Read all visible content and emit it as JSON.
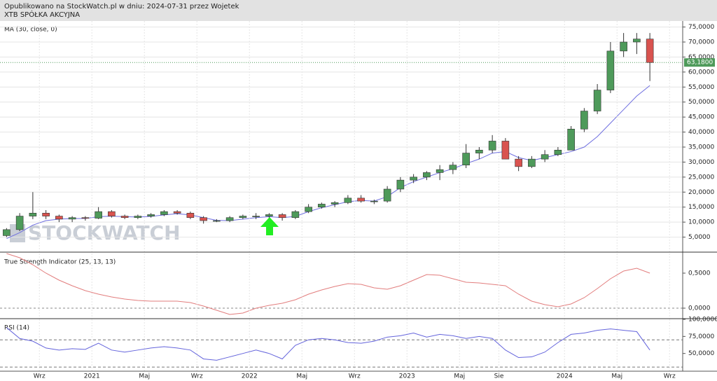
{
  "header": {
    "line1": "Opublikowano na StockWatch.pl w dniu: 2024-07-31 przez Wojetek",
    "line2": "XTB SPÓŁKA AKCYJNA"
  },
  "watermark": "STOCKWATCH",
  "chart_data": [
    {
      "type": "candlestick",
      "title": "MA (30, close, 0)",
      "x": [
        "2020-06",
        "2020-07",
        "2020-08",
        "2020-09",
        "2020-10",
        "2020-11",
        "2020-12",
        "2021-01",
        "2021-02",
        "2021-03",
        "2021-04",
        "2021-05",
        "2021-06",
        "2021-07",
        "2021-08",
        "2021-09",
        "2021-10",
        "2021-11",
        "2021-12",
        "2022-01",
        "2022-02",
        "2022-03",
        "2022-04",
        "2022-05",
        "2022-06",
        "2022-07",
        "2022-08",
        "2022-09",
        "2022-10",
        "2022-11",
        "2022-12",
        "2023-01",
        "2023-02",
        "2023-03",
        "2023-04",
        "2023-05",
        "2023-06",
        "2023-07",
        "2023-08",
        "2023-09",
        "2023-10",
        "2023-11",
        "2023-12",
        "2024-01",
        "2024-02",
        "2024-03",
        "2024-04",
        "2024-05",
        "2024-06",
        "2024-07"
      ],
      "open": [
        5.5,
        7.5,
        12,
        13,
        12,
        11,
        11.5,
        11.3,
        13.5,
        12,
        11.5,
        12,
        12.5,
        13.5,
        13,
        11.5,
        10.5,
        10.5,
        11.5,
        12,
        12,
        12.5,
        11.5,
        13.5,
        15,
        16,
        16.5,
        18,
        17,
        17,
        21,
        24,
        25,
        26.5,
        27.5,
        29,
        33,
        34,
        37,
        31,
        28.5,
        31,
        32.5,
        34,
        41,
        47,
        54,
        67,
        70,
        71
      ],
      "high": [
        8,
        13,
        20,
        14,
        12.5,
        12,
        12,
        15,
        14,
        12.5,
        12.5,
        13,
        14,
        14,
        13.5,
        12,
        11,
        12,
        12.5,
        13,
        13,
        13,
        14,
        16,
        16.5,
        17,
        19,
        19,
        17.5,
        22,
        25,
        26,
        27,
        29,
        30,
        36,
        35,
        39,
        38,
        32,
        32,
        34,
        35,
        42,
        48,
        56,
        70,
        73,
        73,
        73
      ],
      "low": [
        5,
        7,
        11,
        11,
        10,
        10,
        10.5,
        11,
        11.5,
        11,
        11,
        11.5,
        12,
        12.5,
        11,
        9.5,
        10,
        10,
        11,
        11,
        11,
        10.5,
        11,
        13,
        14.5,
        15,
        16,
        16.5,
        16,
        16.5,
        20,
        23,
        24,
        24,
        26,
        28,
        31,
        33,
        31,
        27,
        28,
        30,
        32,
        34,
        40,
        46,
        53,
        65,
        66,
        57
      ],
      "close": [
        7.5,
        12,
        13,
        12,
        11,
        11.5,
        11.3,
        13.5,
        12,
        11.5,
        12,
        12.5,
        13.5,
        13,
        11.5,
        10.5,
        10.5,
        11.5,
        12,
        12,
        12.5,
        11.5,
        13.5,
        15,
        16,
        16.5,
        18,
        17,
        17,
        21,
        24,
        25,
        26.5,
        27.5,
        29,
        33,
        34,
        37,
        31,
        28.5,
        31,
        32.5,
        34,
        41,
        47,
        54,
        67,
        70,
        71,
        63.18
      ],
      "up_color": "#4e9a5a",
      "down_color": "#d9534f",
      "series": [
        {
          "color": "#6f6fe0",
          "values": [
            4.5,
            6.5,
            9,
            10.5,
            11,
            11.2,
            11.2,
            11.8,
            12,
            11.8,
            11.7,
            11.9,
            12.4,
            12.8,
            12.4,
            11.5,
            10.6,
            10.5,
            11,
            11.5,
            11.8,
            11.5,
            11.9,
            13.5,
            14.8,
            15.8,
            16.8,
            17.2,
            17,
            18.5,
            21.5,
            23.5,
            25,
            26.5,
            27.8,
            29.5,
            31,
            33,
            33.5,
            31.5,
            30.5,
            31.5,
            32.5,
            33.5,
            35,
            38.5,
            43,
            47.5,
            52,
            55.5
          ]
        }
      ],
      "last_price": {
        "value": 63.18,
        "label": "63,1800"
      },
      "last_color": "#4e9a5a",
      "xlim": [
        "2020-06",
        "2024-10"
      ],
      "ylim": [
        0,
        77
      ],
      "yticks": [
        {
          "value": 5,
          "label": "5,0000"
        },
        {
          "value": 10,
          "label": "10,0000"
        },
        {
          "value": 15,
          "label": "15,0000"
        },
        {
          "value": 20,
          "label": "20,0000"
        },
        {
          "value": 25,
          "label": "25,0000"
        },
        {
          "value": 30,
          "label": "30,0000"
        },
        {
          "value": 35,
          "label": "35,0000"
        },
        {
          "value": 40,
          "label": "40,0000"
        },
        {
          "value": 45,
          "label": "45,0000"
        },
        {
          "value": 50,
          "label": "50,0000"
        },
        {
          "value": 55,
          "label": "55,0000"
        },
        {
          "value": 60,
          "label": "60,0000"
        },
        {
          "value": 65,
          "label": "65,0000"
        },
        {
          "value": 70,
          "label": "70,0000"
        },
        {
          "value": 75,
          "label": "75,0000"
        }
      ],
      "grid": true
    },
    {
      "type": "line",
      "title": "True Strength Indicator (25, 13, 13)",
      "x": [
        "2020-06",
        "2020-07",
        "2020-08",
        "2020-09",
        "2020-10",
        "2020-11",
        "2020-12",
        "2021-01",
        "2021-02",
        "2021-03",
        "2021-04",
        "2021-05",
        "2021-06",
        "2021-07",
        "2021-08",
        "2021-09",
        "2021-10",
        "2021-11",
        "2021-12",
        "2022-01",
        "2022-02",
        "2022-03",
        "2022-04",
        "2022-05",
        "2022-06",
        "2022-07",
        "2022-08",
        "2022-09",
        "2022-10",
        "2022-11",
        "2022-12",
        "2023-01",
        "2023-02",
        "2023-03",
        "2023-04",
        "2023-05",
        "2023-06",
        "2023-07",
        "2023-08",
        "2023-09",
        "2023-10",
        "2023-11",
        "2023-12",
        "2024-01",
        "2024-02",
        "2024-03",
        "2024-04",
        "2024-05",
        "2024-06",
        "2024-07"
      ],
      "series": [
        {
          "color": "#e27d7d",
          "values": [
            0.78,
            0.72,
            0.62,
            0.5,
            0.4,
            0.32,
            0.25,
            0.2,
            0.16,
            0.13,
            0.11,
            0.1,
            0.1,
            0.1,
            0.08,
            0.03,
            -0.03,
            -0.09,
            -0.07,
            0,
            0.04,
            0.07,
            0.12,
            0.2,
            0.26,
            0.31,
            0.35,
            0.34,
            0.29,
            0.27,
            0.32,
            0.4,
            0.48,
            0.47,
            0.42,
            0.37,
            0.36,
            0.34,
            0.32,
            0.2,
            0.1,
            0.05,
            0.02,
            0.06,
            0.15,
            0.28,
            0.42,
            0.53,
            0.57,
            0.5
          ]
        }
      ],
      "xlim": [
        "2020-06",
        "2024-10"
      ],
      "ylim": [
        -0.15,
        0.78
      ],
      "yticks": [
        {
          "value": 0,
          "label": "0,0000"
        },
        {
          "value": 0.5,
          "label": "0,5000"
        }
      ],
      "zero_line": true
    },
    {
      "type": "line",
      "title": "RSI (14)",
      "x": [
        "2020-06",
        "2020-07",
        "2020-08",
        "2020-09",
        "2020-10",
        "2020-11",
        "2020-12",
        "2021-01",
        "2021-02",
        "2021-03",
        "2021-04",
        "2021-05",
        "2021-06",
        "2021-07",
        "2021-08",
        "2021-09",
        "2021-10",
        "2021-11",
        "2021-12",
        "2022-01",
        "2022-02",
        "2022-03",
        "2022-04",
        "2022-05",
        "2022-06",
        "2022-07",
        "2022-08",
        "2022-09",
        "2022-10",
        "2022-11",
        "2022-12",
        "2023-01",
        "2023-02",
        "2023-03",
        "2023-04",
        "2023-05",
        "2023-06",
        "2023-07",
        "2023-08",
        "2023-09",
        "2023-10",
        "2023-11",
        "2023-12",
        "2024-01",
        "2024-02",
        "2024-03",
        "2024-04",
        "2024-05",
        "2024-06",
        "2024-07"
      ],
      "series": [
        {
          "color": "#6464dc",
          "values": [
            88,
            72,
            68,
            58,
            55,
            57,
            56,
            65,
            55,
            52,
            55,
            58,
            60,
            58,
            55,
            42,
            40,
            45,
            50,
            55,
            50,
            42,
            62,
            70,
            72,
            70,
            66,
            65,
            68,
            74,
            76,
            80,
            74,
            78,
            76,
            72,
            75,
            72,
            55,
            44,
            45,
            52,
            66,
            78,
            80,
            84,
            86,
            84,
            82,
            55
          ]
        }
      ],
      "levels": [
        70,
        30
      ],
      "xlim": [
        "2020-06",
        "2024-10"
      ],
      "ylim": [
        24,
        100
      ],
      "yticks": [
        {
          "value": 50,
          "label": "50,0000"
        },
        {
          "value": 75,
          "label": "75,0000"
        },
        {
          "value": 100,
          "label": "100,0000"
        }
      ],
      "xticks": [
        {
          "value": "2020-09",
          "label": "Wrz"
        },
        {
          "value": "2021-01",
          "label": "2021"
        },
        {
          "value": "2021-05",
          "label": "Maj"
        },
        {
          "value": "2021-09",
          "label": "Wrz"
        },
        {
          "value": "2022-01",
          "label": "2022"
        },
        {
          "value": "2022-05",
          "label": "Maj"
        },
        {
          "value": "2022-09",
          "label": "Wrz"
        },
        {
          "value": "2023-01",
          "label": "2023"
        },
        {
          "value": "2023-05",
          "label": "Maj"
        },
        {
          "value": "2023-08",
          "label": "Sie"
        },
        {
          "value": "2024-01",
          "label": "2024"
        },
        {
          "value": "2024-05",
          "label": "Maj"
        },
        {
          "value": "2024-09",
          "label": "Wrz"
        }
      ]
    }
  ]
}
